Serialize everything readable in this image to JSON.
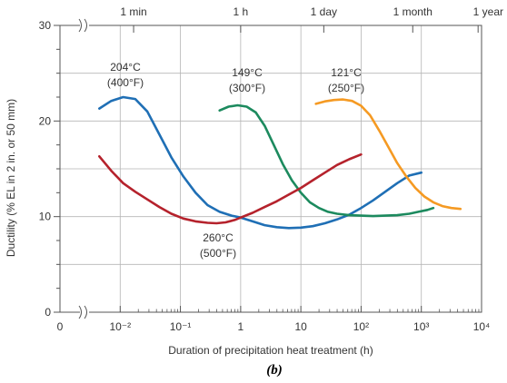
{
  "chart_data": {
    "type": "line",
    "caption": "(b)",
    "xlabel": "Duration of precipitation heat treatment (h)",
    "ylabel": "Ductility (% EL in 2 in. or 50 mm)",
    "x_scale": "log",
    "xlim": [
      0.001,
      10000
    ],
    "ylim": [
      0,
      30
    ],
    "grid": true,
    "x_ticks": [
      {
        "value": 0.001,
        "label": "0"
      },
      {
        "value": 0.01,
        "label": "10⁻²"
      },
      {
        "value": 0.1,
        "label": "10⁻¹"
      },
      {
        "value": 1,
        "label": "1"
      },
      {
        "value": 10,
        "label": "10"
      },
      {
        "value": 100,
        "label": "10²"
      },
      {
        "value": 1000,
        "label": "10³"
      },
      {
        "value": 10000,
        "label": "10⁴"
      }
    ],
    "y_ticks": [
      {
        "value": 0,
        "label": "0"
      },
      {
        "value": 10,
        "label": "10"
      },
      {
        "value": 20,
        "label": "20"
      },
      {
        "value": 30,
        "label": "30"
      }
    ],
    "top_axis_ticks": [
      {
        "value": 0.0167,
        "label": "1 min"
      },
      {
        "value": 1,
        "label": "1 h"
      },
      {
        "value": 24,
        "label": "1 day"
      },
      {
        "value": 720,
        "label": "1 month"
      },
      {
        "value": 8760,
        "label": "1 year"
      }
    ],
    "series": [
      {
        "name": "204°C (400°F)",
        "color": "#1f6fb5",
        "points": [
          [
            0.0045,
            21.3
          ],
          [
            0.0071,
            22.1
          ],
          [
            0.0112,
            22.5
          ],
          [
            0.0178,
            22.3
          ],
          [
            0.0282,
            21.0
          ],
          [
            0.0447,
            18.6
          ],
          [
            0.0708,
            16.2
          ],
          [
            0.112,
            14.2
          ],
          [
            0.178,
            12.5
          ],
          [
            0.282,
            11.2
          ],
          [
            0.447,
            10.5
          ],
          [
            0.708,
            10.1
          ],
          [
            1.0,
            9.9
          ],
          [
            1.58,
            9.5
          ],
          [
            2.51,
            9.1
          ],
          [
            3.98,
            8.9
          ],
          [
            6.31,
            8.8
          ],
          [
            10,
            8.85
          ],
          [
            15.8,
            9.0
          ],
          [
            25.1,
            9.3
          ],
          [
            39.8,
            9.7
          ],
          [
            63.1,
            10.2
          ],
          [
            100,
            10.9
          ],
          [
            158,
            11.7
          ],
          [
            251,
            12.6
          ],
          [
            398,
            13.5
          ],
          [
            631,
            14.3
          ],
          [
            1000,
            14.6
          ]
        ],
        "label_lines": [
          "204°C",
          "(400°F)"
        ]
      },
      {
        "name": "149°C (300°F)",
        "color": "#1c8a5e",
        "points": [
          [
            0.447,
            21.1
          ],
          [
            0.631,
            21.5
          ],
          [
            0.891,
            21.65
          ],
          [
            1.26,
            21.5
          ],
          [
            1.78,
            20.9
          ],
          [
            2.51,
            19.5
          ],
          [
            3.55,
            17.5
          ],
          [
            5.01,
            15.5
          ],
          [
            7.08,
            13.8
          ],
          [
            10,
            12.5
          ],
          [
            14.1,
            11.5
          ],
          [
            20,
            10.9
          ],
          [
            28.2,
            10.5
          ],
          [
            39.8,
            10.3
          ],
          [
            63.1,
            10.15
          ],
          [
            100,
            10.1
          ],
          [
            158,
            10.05
          ],
          [
            251,
            10.1
          ],
          [
            398,
            10.15
          ],
          [
            631,
            10.3
          ],
          [
            891,
            10.5
          ],
          [
            1260,
            10.7
          ],
          [
            1580,
            10.9
          ]
        ],
        "label_lines": [
          "149°C",
          "(300°F)"
        ]
      },
      {
        "name": "121°C (250°F)",
        "color": "#f59a23",
        "points": [
          [
            17.8,
            21.8
          ],
          [
            25.1,
            22.05
          ],
          [
            35.5,
            22.2
          ],
          [
            50.1,
            22.25
          ],
          [
            70.8,
            22.1
          ],
          [
            100,
            21.6
          ],
          [
            141,
            20.6
          ],
          [
            200,
            19.0
          ],
          [
            282,
            17.3
          ],
          [
            398,
            15.6
          ],
          [
            562,
            14.2
          ],
          [
            794,
            13.0
          ],
          [
            1120,
            12.1
          ],
          [
            1580,
            11.5
          ],
          [
            2240,
            11.1
          ],
          [
            3160,
            10.9
          ],
          [
            4470,
            10.8
          ]
        ],
        "label_lines": [
          "121°C",
          "(250°F)"
        ]
      },
      {
        "name": "260°C (500°F)",
        "color": "#b5222c",
        "points": [
          [
            0.0045,
            16.3
          ],
          [
            0.0071,
            14.8
          ],
          [
            0.0112,
            13.5
          ],
          [
            0.0178,
            12.6
          ],
          [
            0.0282,
            11.8
          ],
          [
            0.0447,
            11.0
          ],
          [
            0.0708,
            10.3
          ],
          [
            0.112,
            9.8
          ],
          [
            0.178,
            9.5
          ],
          [
            0.282,
            9.35
          ],
          [
            0.398,
            9.3
          ],
          [
            0.562,
            9.4
          ],
          [
            0.794,
            9.65
          ],
          [
            1.0,
            9.9
          ],
          [
            1.58,
            10.4
          ],
          [
            2.51,
            11.0
          ],
          [
            3.98,
            11.6
          ],
          [
            6.31,
            12.3
          ],
          [
            10,
            13.0
          ],
          [
            15.8,
            13.8
          ],
          [
            25.1,
            14.6
          ],
          [
            39.8,
            15.4
          ],
          [
            63.1,
            16.0
          ],
          [
            100,
            16.5
          ]
        ],
        "label_lines": [
          "260°C",
          "(500°F)"
        ]
      }
    ]
  }
}
